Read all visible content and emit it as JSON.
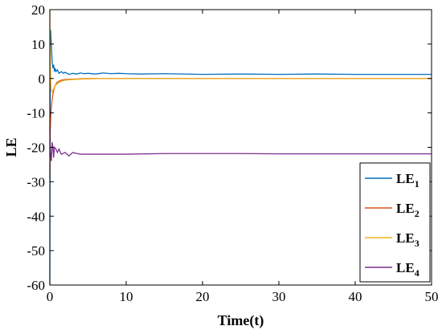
{
  "chart_data": {
    "type": "line",
    "title": "",
    "xlabel": "Time(t)",
    "ylabel": "LE",
    "xlim": [
      0,
      50
    ],
    "ylim": [
      -60,
      20
    ],
    "xticks": [
      "0",
      "10",
      "20",
      "30",
      "40",
      "50"
    ],
    "yticks": [
      "20",
      "10",
      "0",
      "-10",
      "-20",
      "-30",
      "-40",
      "-50",
      "-60"
    ],
    "grid": false,
    "legend_position": "bottom-right",
    "series": [
      {
        "name": "LE",
        "subscript": "1",
        "color": "#0072BD",
        "x": [
          0,
          0.05,
          0.1,
          0.2,
          0.3,
          0.4,
          0.5,
          0.6,
          0.7,
          0.8,
          1.0,
          1.2,
          1.5,
          1.8,
          2.0,
          2.5,
          3.0,
          3.5,
          4.0,
          4.5,
          5.0,
          6,
          7,
          8,
          9,
          10,
          12,
          15,
          20,
          25,
          30,
          35,
          40,
          45,
          50
        ],
        "y": [
          -60,
          14,
          14,
          10,
          5,
          3,
          4,
          2,
          3,
          2,
          2.5,
          1.5,
          2,
          1.5,
          1.8,
          1.2,
          1.5,
          1.3,
          1.6,
          1.4,
          1.5,
          1.3,
          1.6,
          1.4,
          1.5,
          1.4,
          1.3,
          1.4,
          1.2,
          1.3,
          1.2,
          1.3,
          1.2,
          1.2,
          1.2
        ]
      },
      {
        "name": "LE",
        "subscript": "2",
        "color": "#D95319",
        "x": [
          0,
          0.05,
          0.15,
          0.3,
          0.5,
          0.7,
          1.0,
          1.5,
          2.0,
          3.0,
          4.0,
          5.0,
          7,
          10,
          15,
          20,
          30,
          40,
          50
        ],
        "y": [
          -29,
          -15,
          -10,
          -6,
          -3.5,
          -2,
          -1,
          -0.5,
          -0.3,
          -0.2,
          -0.1,
          0,
          0,
          0,
          0,
          0,
          0,
          0,
          0
        ]
      },
      {
        "name": "LE",
        "subscript": "3",
        "color": "#EDB120",
        "x": [
          0,
          0.05,
          0.15,
          0.3,
          0.5,
          0.7,
          1.0,
          1.5,
          2.0,
          3.0,
          4.0,
          5.0,
          7,
          10,
          15,
          20,
          30,
          40,
          50
        ],
        "y": [
          20,
          5,
          -3,
          -4,
          -3,
          -2,
          -1.5,
          -0.8,
          -0.5,
          -0.3,
          -0.2,
          -0.1,
          0,
          0,
          0,
          0,
          0,
          0,
          0
        ]
      },
      {
        "name": "LE",
        "subscript": "4",
        "color": "#7E2F8E",
        "x": [
          0,
          0.05,
          0.1,
          0.2,
          0.3,
          0.4,
          0.5,
          0.6,
          0.8,
          1.0,
          1.2,
          1.5,
          2.0,
          2.5,
          3.0,
          4.0,
          5.0,
          7,
          10,
          15,
          20,
          25,
          30,
          35,
          40,
          45,
          50
        ],
        "y": [
          -14,
          -20,
          -22,
          -24,
          -18.5,
          -20,
          -23,
          -20,
          -20.5,
          -21.5,
          -20.5,
          -22,
          -21.5,
          -22.5,
          -21.5,
          -22,
          -22,
          -22,
          -22,
          -21.8,
          -21.8,
          -21.8,
          -21.9,
          -21.9,
          -21.9,
          -21.9,
          -21.9
        ]
      }
    ]
  }
}
